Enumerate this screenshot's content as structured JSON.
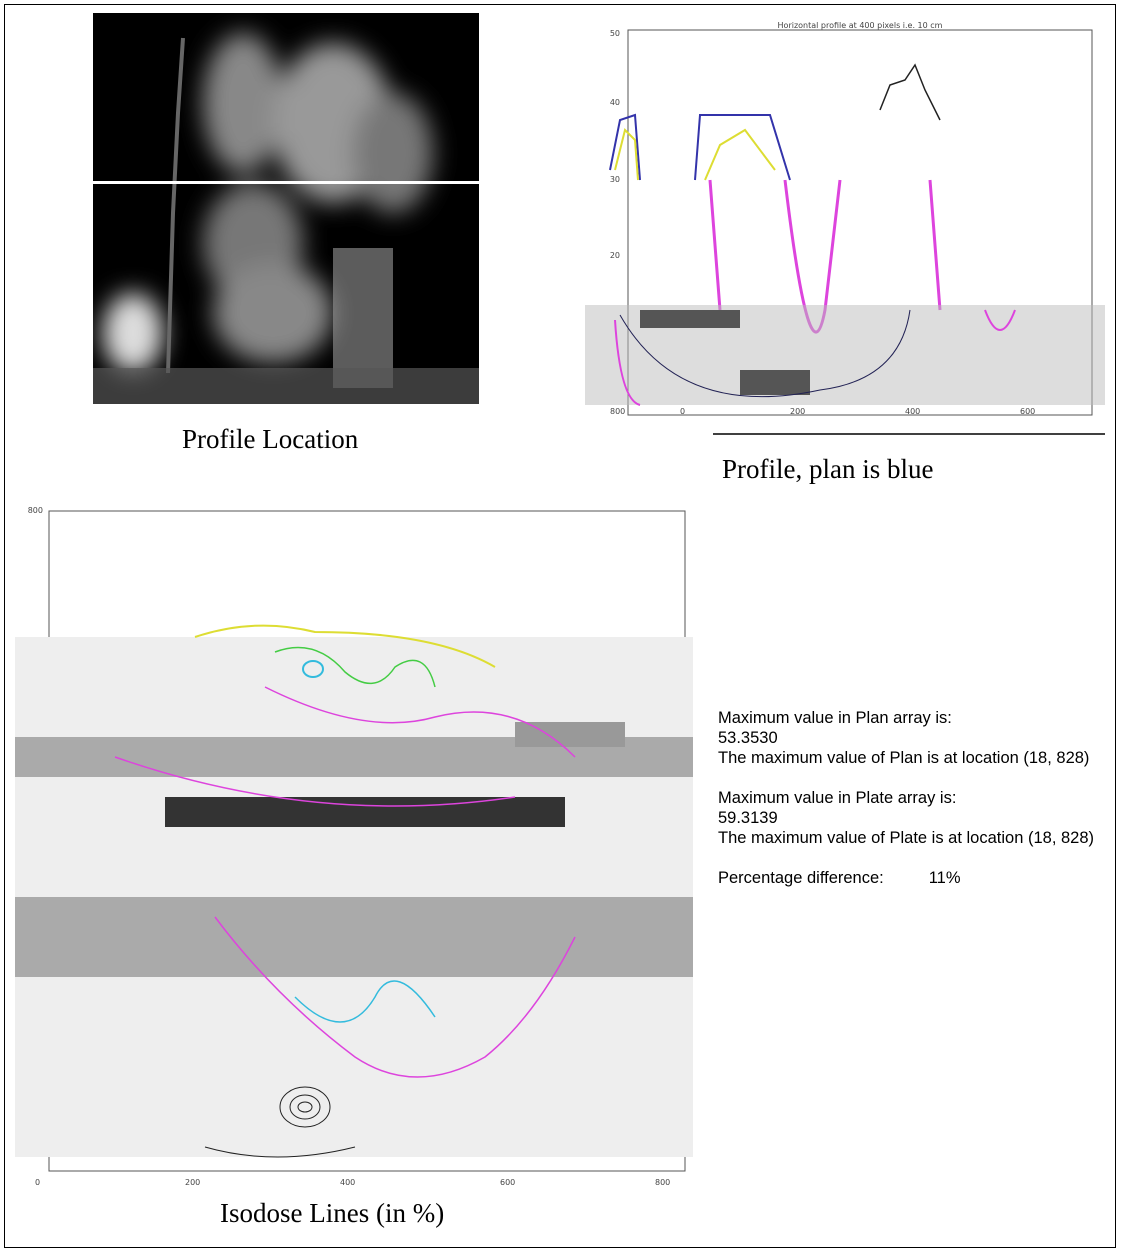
{
  "profile_location": {
    "caption": "Profile Location"
  },
  "profile_plot": {
    "title": "Horizontal profile at 400 pixels i.e. 10 cm",
    "yticks": [
      "50",
      "40",
      "30",
      "20"
    ],
    "xticks": [
      "800",
      "0",
      "200",
      "400",
      "600"
    ],
    "caption": "Profile, plan is blue"
  },
  "isodose": {
    "yticks": [
      "800"
    ],
    "xticks": [
      "0",
      "200",
      "400",
      "600",
      "800"
    ],
    "caption": "Isodose Lines (in %)"
  },
  "results": {
    "plan_max_label": "Maximum value in Plan array is:",
    "plan_max": "53.3530",
    "plan_location": "The maximum value of Plan is at location (18, 828)",
    "plate_max_label": "Maximum value in Plate array is:",
    "plate_max": "59.3139",
    "plate_location": "The maximum value of Plate is at location (18, 828)",
    "percentage_label": "Percentage difference:",
    "percentage": "11%"
  }
}
